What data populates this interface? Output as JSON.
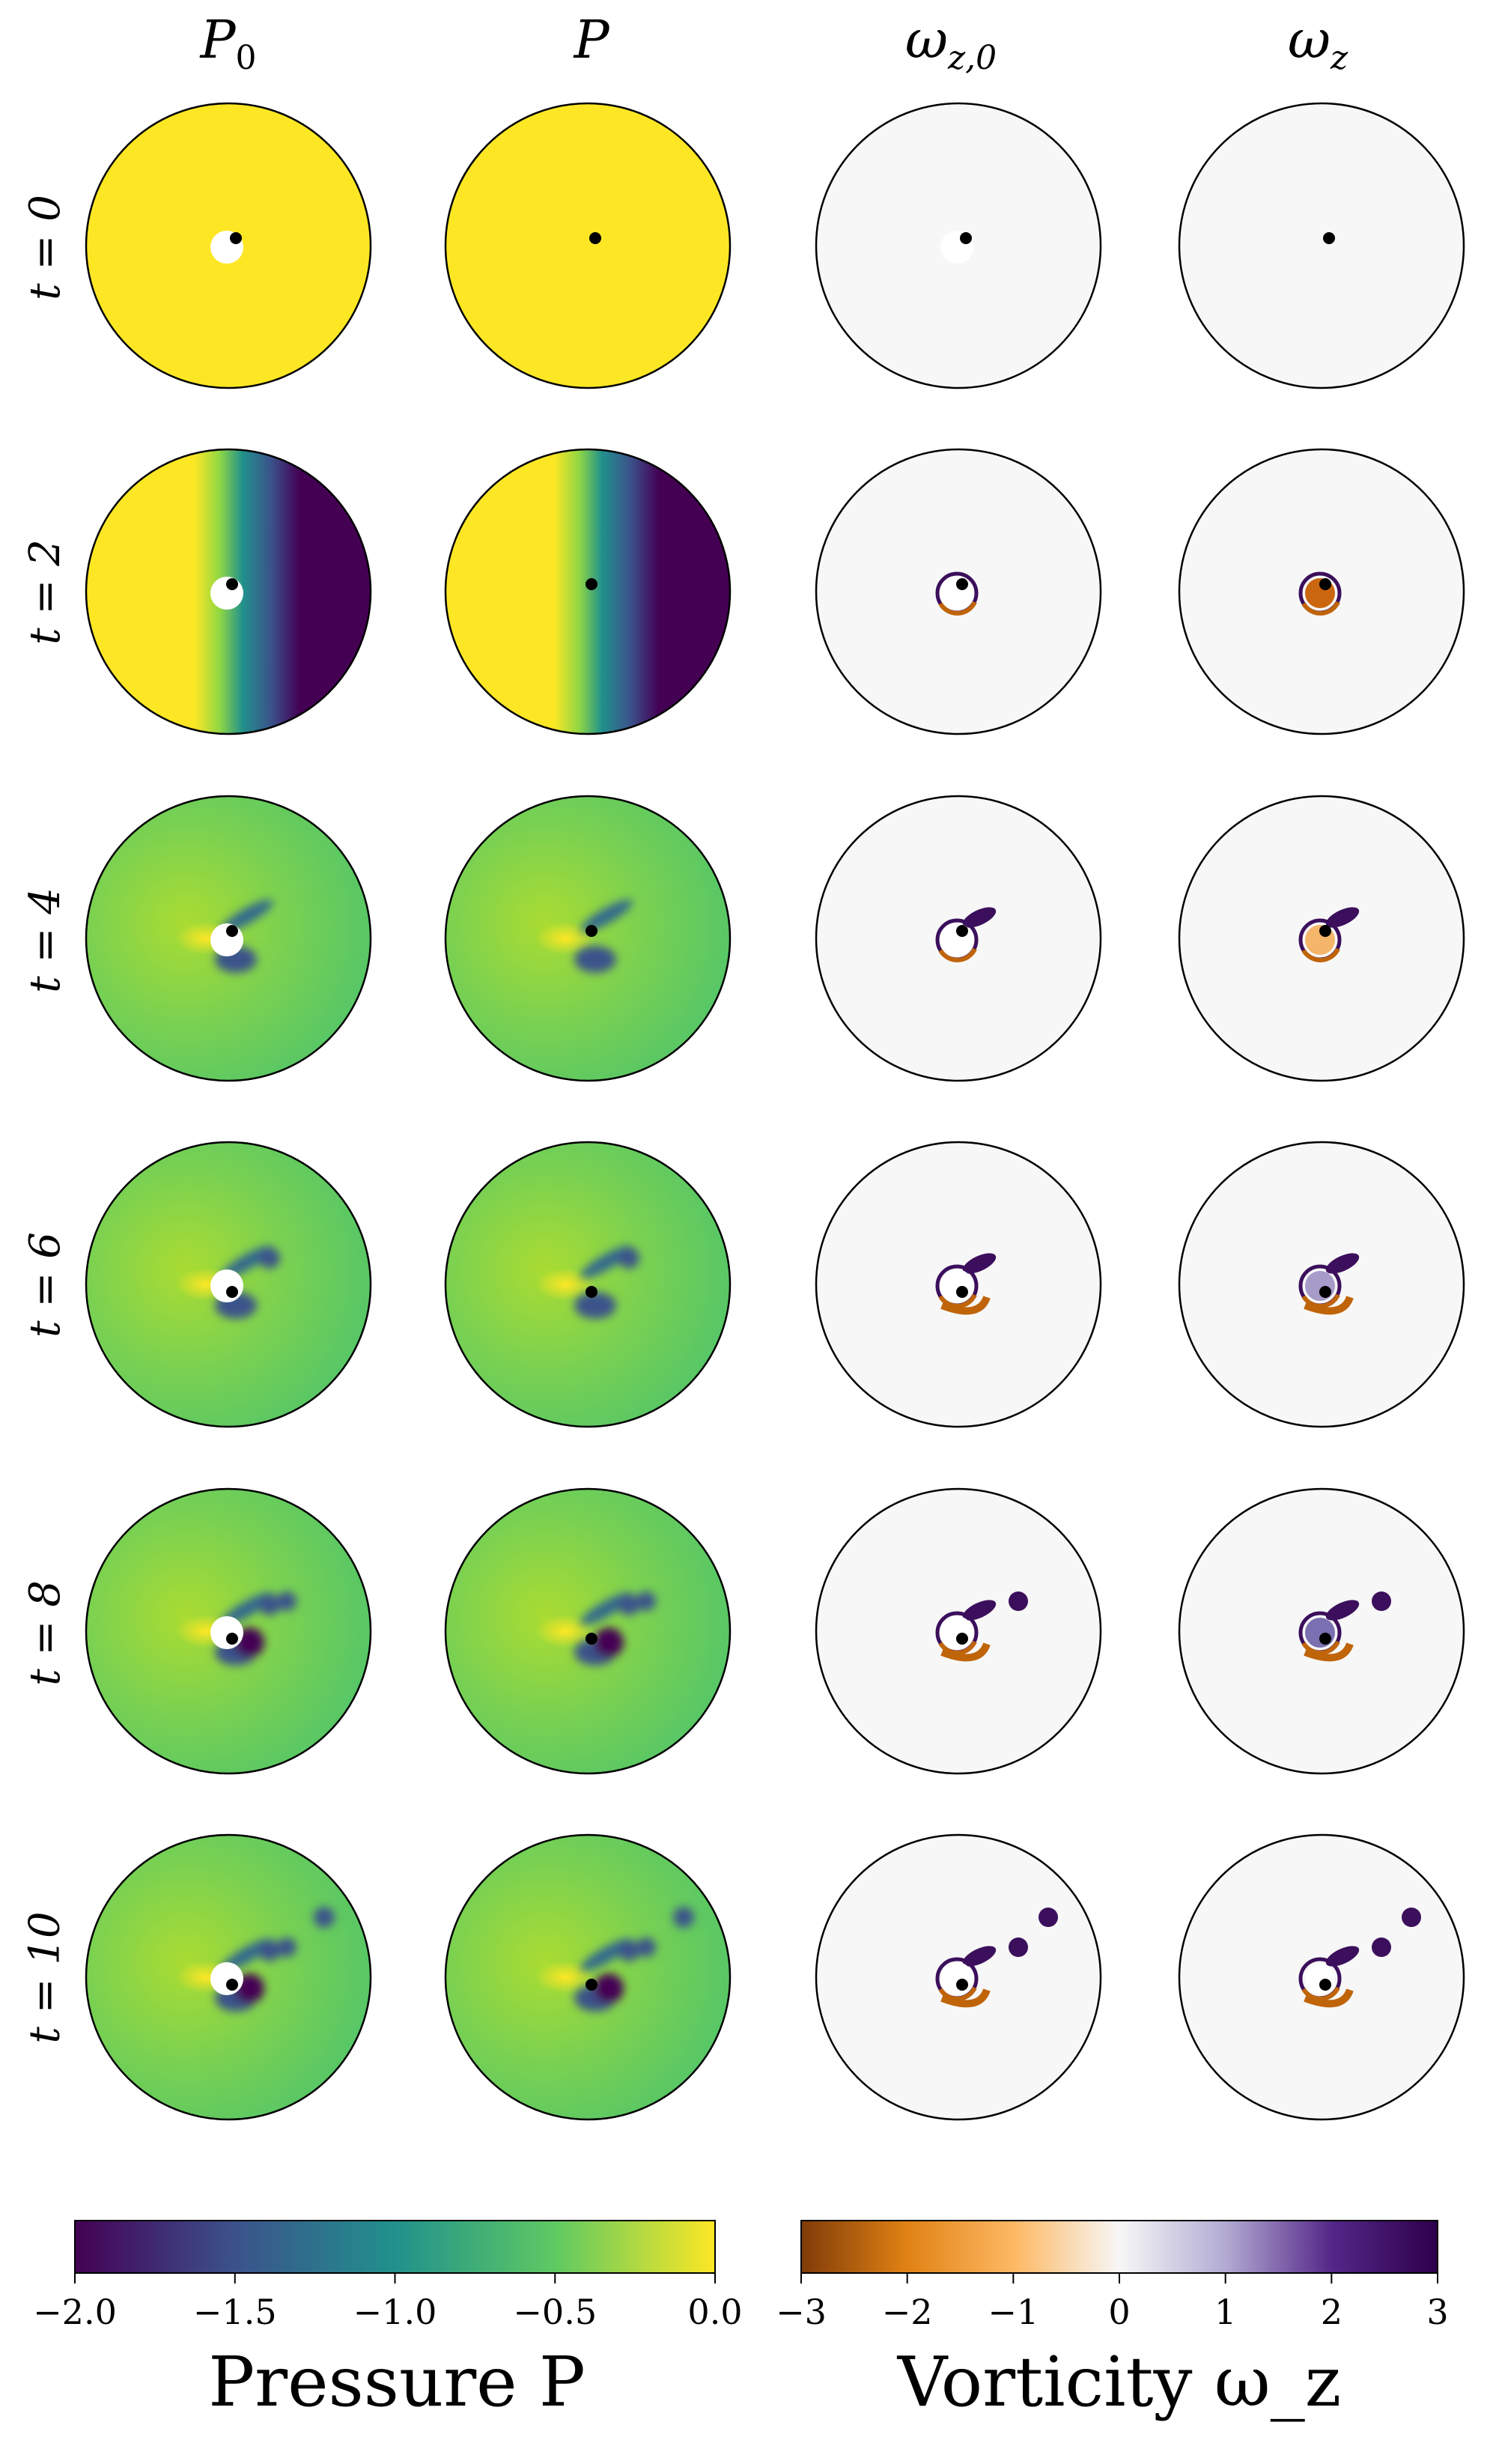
{
  "columns": [
    "P_0",
    "P",
    "ω_z,0",
    "ω_z"
  ],
  "column_titles": [
    {
      "main": "P",
      "sub": "0"
    },
    {
      "main": "P",
      "sub": ""
    },
    {
      "main": "ω",
      "sub": "z,0"
    },
    {
      "main": "ω",
      "sub": "z"
    }
  ],
  "rows": [
    {
      "label": "t = 0",
      "time": 0
    },
    {
      "label": "t = 2",
      "time": 2
    },
    {
      "label": "t = 4",
      "time": 4
    },
    {
      "label": "t = 6",
      "time": 6
    },
    {
      "label": "t = 8",
      "time": 8
    },
    {
      "label": "t = 10",
      "time": 10
    }
  ],
  "colorbars": {
    "pressure": {
      "title": "Pressure P",
      "colormap": "viridis",
      "range": [
        -2.0,
        0.0
      ],
      "ticks": [
        "−2.0",
        "−1.5",
        "−1.0",
        "−0.5",
        "0.0"
      ],
      "stops": [
        "#440154",
        "#3b528b",
        "#21918c",
        "#5ec962",
        "#fde725"
      ]
    },
    "vorticity": {
      "title": "Vorticity ω_z",
      "colormap": "PuOr",
      "range": [
        -3,
        3
      ],
      "ticks": [
        "−3",
        "−2",
        "−1",
        "0",
        "1",
        "2",
        "3"
      ],
      "stops": [
        "#7f3b08",
        "#e08214",
        "#fdb863",
        "#f7f7f7",
        "#b2abd2",
        "#542788",
        "#2d004b"
      ]
    }
  },
  "colors": {
    "pressure_high": "#fde725",
    "pressure_mid": "#5ec962",
    "pressure_low": "#440154",
    "vorticity_positive": "#3b0f5c",
    "vorticity_negative": "#c0640a",
    "background_field": "#f7f7f7"
  }
}
